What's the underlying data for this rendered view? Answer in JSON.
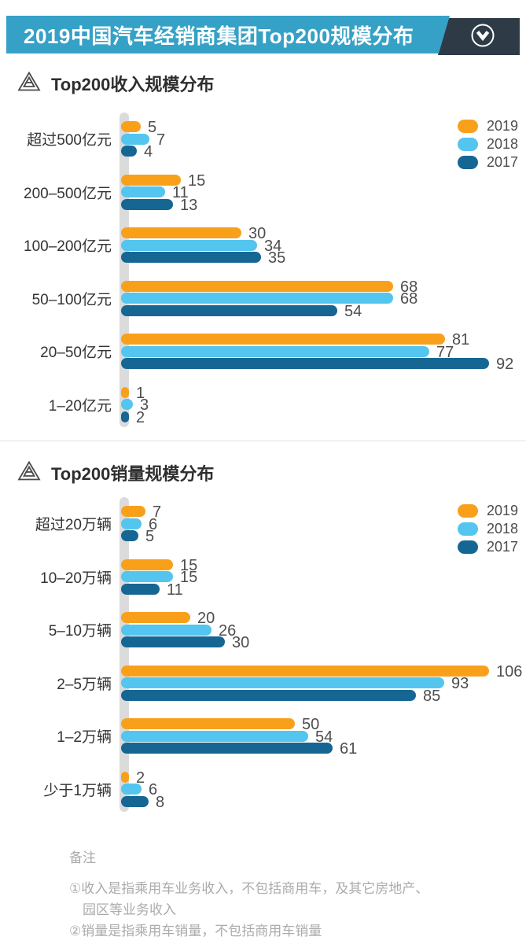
{
  "header": {
    "title": "2019中国汽车经销商集团Top200规模分布"
  },
  "icons": {
    "header_toggle": "chevron-down-circle-icon",
    "section_marker": "triangle-logo-icon"
  },
  "colors": {
    "banner_blue": "#36A1C6",
    "banner_dark": "#2E3B47",
    "series_2019": "#F9A01B",
    "series_2018": "#53C5EF",
    "series_2017": "#166694",
    "axis_gray": "#DBDBDB",
    "value_text": "#4D4D4D",
    "category_text": "#333333",
    "note_text": "#ABABAB"
  },
  "chart_data": [
    {
      "type": "bar",
      "orientation": "horizontal",
      "title": "Top200收入规模分布",
      "categories": [
        "超过500亿元",
        "200–500亿元",
        "100–200亿元",
        "50–100亿元",
        "20–50亿元",
        "1–20亿元"
      ],
      "series": [
        {
          "name": "2019",
          "color": "#F9A01B",
          "values": [
            5,
            15,
            30,
            68,
            81,
            1
          ]
        },
        {
          "name": "2018",
          "color": "#53C5EF",
          "values": [
            7,
            11,
            34,
            68,
            77,
            3
          ]
        },
        {
          "name": "2017",
          "color": "#166694",
          "values": [
            4,
            13,
            35,
            54,
            92,
            2
          ]
        }
      ],
      "value_labels": true,
      "legend_position": "top-right",
      "grid": false,
      "xlim": [
        0,
        92
      ]
    },
    {
      "type": "bar",
      "orientation": "horizontal",
      "title": "Top200销量规模分布",
      "categories": [
        "超过20万辆",
        "10–20万辆",
        "5–10万辆",
        "2–5万辆",
        "1–2万辆",
        "少于1万辆"
      ],
      "series": [
        {
          "name": "2019",
          "color": "#F9A01B",
          "values": [
            7,
            15,
            20,
            106,
            50,
            2
          ]
        },
        {
          "name": "2018",
          "color": "#53C5EF",
          "values": [
            6,
            15,
            26,
            93,
            54,
            6
          ]
        },
        {
          "name": "2017",
          "color": "#166694",
          "values": [
            5,
            11,
            30,
            85,
            61,
            8
          ]
        }
      ],
      "value_labels": true,
      "legend_position": "top-right",
      "grid": false,
      "xlim": [
        0,
        106
      ]
    }
  ],
  "notes": {
    "heading": "备注",
    "lines": [
      {
        "text": "①收入是指乘用车业务收入，不包括商用车，及其它房地产、",
        "indent": false
      },
      {
        "text": "园区等业务收入",
        "indent": true
      },
      {
        "text": "②销量是指乘用车销量，不包括商用车销量",
        "indent": false
      }
    ]
  }
}
